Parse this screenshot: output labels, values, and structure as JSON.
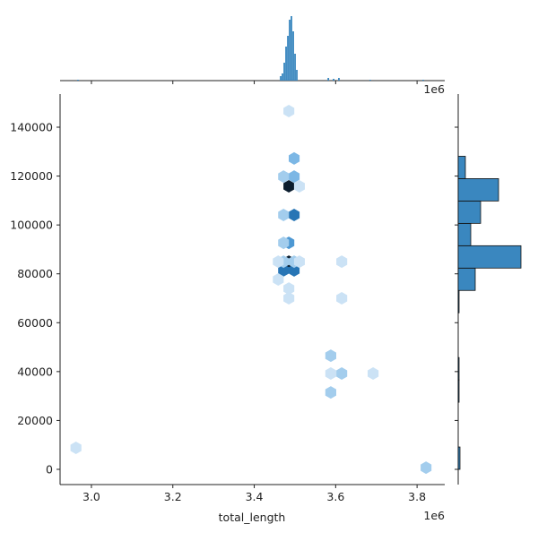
{
  "chart_data": [
    {
      "type": "hexbin",
      "x_label": "total_length",
      "x_offset_text": "1e6",
      "x": [
        3485000,
        3485000,
        3498000,
        3472000,
        3498000,
        3485000,
        3498000,
        3498000,
        3472000,
        3472000,
        3472000,
        3472000,
        3498000,
        3511000,
        3459000,
        3459000,
        3485000,
        3511000,
        3485000,
        3485000,
        3588000,
        3588000,
        3615000,
        3588000,
        3615000,
        3615000,
        3692000,
        3822000,
        2962000
      ],
      "y": [
        115800,
        85000,
        104100,
        81400,
        81400,
        92700,
        127200,
        119800,
        119800,
        104100,
        92700,
        85000,
        85000,
        85000,
        85000,
        77700,
        74000,
        115800,
        146600,
        70000,
        46500,
        31500,
        39200,
        39200,
        85000,
        70000,
        39200,
        700,
        8800
      ],
      "values": [
        10,
        10,
        7,
        7,
        7,
        5,
        3,
        3,
        2,
        2,
        2,
        2,
        2,
        1,
        1,
        1,
        1,
        1,
        1,
        1,
        2,
        2,
        2,
        1,
        1,
        1,
        1,
        2,
        1
      ],
      "cmap": [
        "#f2f8fd",
        "#6fb0e2",
        "#2a7fc4",
        "#0b1d2e"
      ],
      "xlim": [
        2923000,
        3868000
      ],
      "ylim": [
        -6230,
        153560
      ],
      "xticks": [
        {
          "value": 3000000,
          "label": "3.0"
        },
        {
          "value": 3200000,
          "label": "3.2"
        },
        {
          "value": 3400000,
          "label": "3.4"
        },
        {
          "value": 3600000,
          "label": "3.6"
        },
        {
          "value": 3800000,
          "label": "3.8"
        }
      ],
      "yticks": [
        0,
        20000,
        40000,
        60000,
        80000,
        100000,
        120000,
        140000
      ]
    },
    {
      "type": "bar",
      "offset_text": "1e6",
      "color": "#3a87bf",
      "x": [
        3465000,
        3469400,
        3473800,
        3478200,
        3482600,
        3487000,
        3491400,
        3495800,
        3500200,
        3504600,
        3582000,
        3595000,
        3608000,
        3685000,
        3815000,
        2967000
      ],
      "values": [
        5,
        8,
        20,
        38,
        50,
        68,
        72,
        55,
        30,
        12,
        3,
        2,
        3,
        1,
        1,
        1
      ],
      "bar_width": 4000,
      "ylim": [
        0,
        72
      ]
    },
    {
      "type": "histogram",
      "orientation": "horizontal",
      "color": "#3a87bf",
      "bins": [
        0,
        9150,
        18300,
        27450,
        36600,
        45750,
        54900,
        64050,
        73200,
        82350,
        91500,
        100650,
        109800,
        118950,
        128100
      ],
      "values": [
        2,
        0,
        0,
        1,
        1,
        0,
        0,
        1,
        19,
        70,
        14,
        25,
        45,
        8
      ],
      "xlim": [
        0,
        72
      ]
    }
  ]
}
